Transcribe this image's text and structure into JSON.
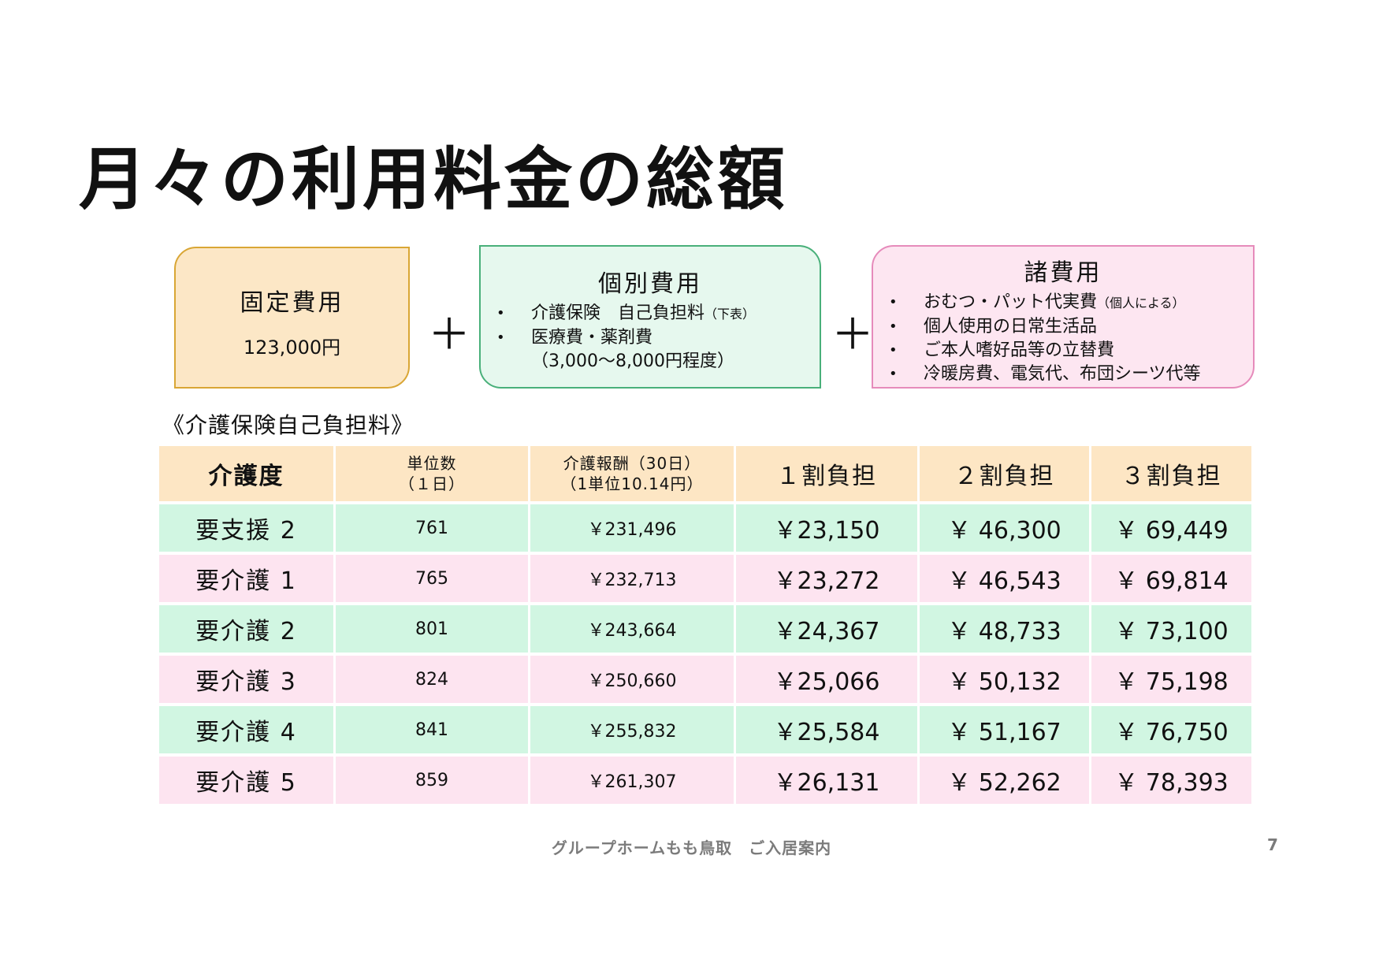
{
  "title": "月々の利用料金の総額",
  "boxes": {
    "fixed": {
      "heading": "固定費用",
      "amount": "123,000円"
    },
    "individual": {
      "heading": "個別費用",
      "items": [
        {
          "text": "介護保険　自己負担料",
          "note": "（下表）"
        },
        {
          "text": "医療費・薬剤費",
          "cont": "（3,000～8,000円程度）"
        }
      ]
    },
    "misc": {
      "heading": "諸費用",
      "items": [
        {
          "text": "おむつ・パット代実費",
          "note": "（個人による）"
        },
        {
          "text": "個人使用の日常生活品"
        },
        {
          "text": "ご本人嗜好品等の立替費"
        },
        {
          "text": "冷暖房費、電気代、布団シーツ代等"
        }
      ]
    },
    "plus": "＋"
  },
  "subheading": "《介護保険自己負担料》",
  "table": {
    "headers": [
      {
        "line1": "介護度"
      },
      {
        "line1": "単位数",
        "line2": "（１日）"
      },
      {
        "line1": "介護報酬（30日）",
        "line2": "（1単位10.14円）"
      },
      {
        "line1": "１割負担"
      },
      {
        "line1": "２割負担"
      },
      {
        "line1": "３割負担"
      }
    ],
    "rows": [
      {
        "level": "要支援 2",
        "units": "761",
        "reward": "￥231,496",
        "r1": "￥23,150",
        "r2": "￥ 46,300",
        "r3": "￥ 69,449"
      },
      {
        "level": "要介護 1",
        "units": "765",
        "reward": "￥232,713",
        "r1": "￥23,272",
        "r2": "￥ 46,543",
        "r3": "￥ 69,814"
      },
      {
        "level": "要介護 2",
        "units": "801",
        "reward": "￥243,664",
        "r1": "￥24,367",
        "r2": "￥ 48,733",
        "r3": "￥ 73,100"
      },
      {
        "level": "要介護 3",
        "units": "824",
        "reward": "￥250,660",
        "r1": "￥25,066",
        "r2": "￥ 50,132",
        "r3": "￥ 75,198"
      },
      {
        "level": "要介護 4",
        "units": "841",
        "reward": "￥255,832",
        "r1": "￥25,584",
        "r2": "￥ 51,167",
        "r3": "￥ 76,750"
      },
      {
        "level": "要介護 5",
        "units": "859",
        "reward": "￥261,307",
        "r1": "￥26,131",
        "r2": "￥ 52,262",
        "r3": "￥ 78,393"
      }
    ]
  },
  "footer": {
    "text": "グループホームもも鳥取　ご入居案内",
    "page": "7"
  },
  "colors": {
    "fixed_box": "#fce7c6",
    "individual_box": "#e6f8ee",
    "misc_box": "#fde6f1",
    "header_row": "#fde6c4",
    "row_green": "#d1f6e2",
    "row_pink": "#fde4f0"
  }
}
